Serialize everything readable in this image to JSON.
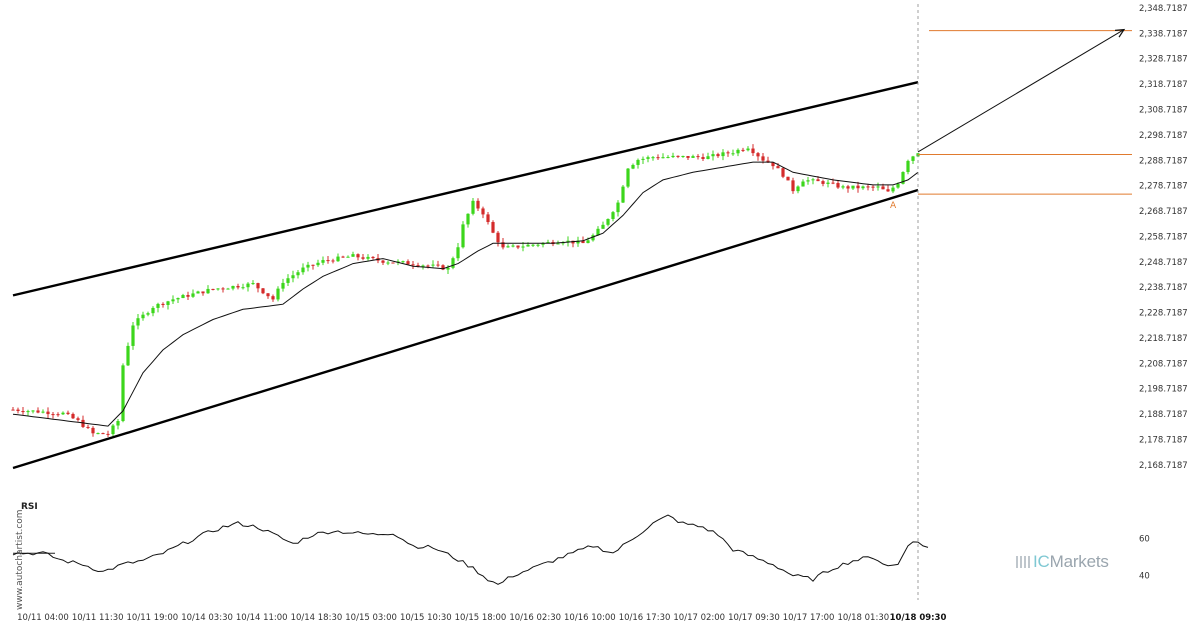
{
  "chart_data": [
    {
      "type": "candlestick",
      "title": "",
      "pattern": "Ascending channel (support touch, projected breakout up)",
      "y_axis": {
        "position": "right",
        "ticks": [
          "2,348.7187",
          "2,338.7187",
          "2,328.7187",
          "2,318.7187",
          "2,308.7187",
          "2,298.7187",
          "2,288.7187",
          "2,278.7187",
          "2,268.7187",
          "2,258.7187",
          "2,248.7187",
          "2,238.7187",
          "2,228.7187",
          "2,218.7187",
          "2,208.7187",
          "2,198.7187",
          "2,188.7187",
          "2,178.7187",
          "2,168.7187"
        ],
        "ylim": [
          2166.7,
          2349.5
        ]
      },
      "x_axis": {
        "ticks": [
          "10/11 04:00",
          "10/11 11:30",
          "10/11 19:00",
          "10/14 03:30",
          "10/14 11:00",
          "10/14 18:30",
          "10/15 03:00",
          "10/15 10:30",
          "10/15 18:00",
          "10/16 02:30",
          "10/16 10:00",
          "10/16 17:30",
          "10/17 02:00",
          "10/17 09:30",
          "10/17 17:00",
          "10/18 01:30",
          "10/18 09:30"
        ],
        "highlighted_tick": "10/18 09:30",
        "bar_count": 182
      },
      "price_anchors": [
        [
          0,
          2190.5
        ],
        [
          10,
          2189
        ],
        [
          13,
          2186
        ],
        [
          16,
          2181
        ],
        [
          19,
          2181
        ],
        [
          21,
          2186
        ],
        [
          22,
          2208
        ],
        [
          24,
          2224
        ],
        [
          28,
          2231
        ],
        [
          32,
          2234
        ],
        [
          36,
          2236
        ],
        [
          40,
          2238
        ],
        [
          44,
          2239
        ],
        [
          48,
          2240
        ],
        [
          50,
          2237
        ],
        [
          52,
          2234
        ],
        [
          54,
          2241
        ],
        [
          58,
          2246
        ],
        [
          62,
          2249
        ],
        [
          68,
          2251
        ],
        [
          74,
          2249
        ],
        [
          80,
          2248
        ],
        [
          84,
          2247
        ],
        [
          87,
          2246
        ],
        [
          89,
          2255
        ],
        [
          90,
          2263
        ],
        [
          92,
          2272
        ],
        [
          94,
          2268
        ],
        [
          96,
          2260
        ],
        [
          98,
          2254
        ],
        [
          102,
          2255
        ],
        [
          110,
          2257
        ],
        [
          114,
          2256
        ],
        [
          116,
          2259
        ],
        [
          118,
          2263
        ],
        [
          121,
          2272
        ],
        [
          123,
          2286
        ],
        [
          125,
          2289
        ],
        [
          128,
          2290
        ],
        [
          133,
          2290
        ],
        [
          139,
          2290
        ],
        [
          144,
          2292
        ],
        [
          147,
          2294
        ],
        [
          150,
          2289
        ],
        [
          152,
          2287
        ],
        [
          154,
          2283
        ],
        [
          156,
          2277
        ],
        [
          158,
          2281
        ],
        [
          162,
          2280
        ],
        [
          166,
          2278
        ],
        [
          170,
          2278
        ],
        [
          173,
          2278
        ],
        [
          175,
          2276
        ],
        [
          177,
          2280
        ],
        [
          179,
          2289
        ],
        [
          181,
          2292
        ]
      ],
      "moving_average_anchors": [
        [
          0,
          2188.7
        ],
        [
          17,
          2184.5
        ],
        [
          19,
          2184
        ],
        [
          22,
          2190
        ],
        [
          26,
          2205
        ],
        [
          30,
          2214
        ],
        [
          34,
          2220
        ],
        [
          40,
          2226
        ],
        [
          46,
          2230
        ],
        [
          54,
          2232
        ],
        [
          58,
          2238
        ],
        [
          62,
          2243
        ],
        [
          68,
          2248
        ],
        [
          74,
          2250
        ],
        [
          80,
          2247
        ],
        [
          86,
          2246
        ],
        [
          89,
          2248
        ],
        [
          93,
          2253
        ],
        [
          96,
          2256
        ],
        [
          100,
          2256
        ],
        [
          108,
          2256
        ],
        [
          114,
          2257
        ],
        [
          118,
          2260
        ],
        [
          122,
          2267
        ],
        [
          126,
          2276
        ],
        [
          130,
          2281
        ],
        [
          136,
          2284
        ],
        [
          142,
          2286
        ],
        [
          148,
          2288
        ],
        [
          152,
          2288
        ],
        [
          156,
          2284
        ],
        [
          164,
          2281
        ],
        [
          172,
          2279
        ],
        [
          176,
          2279
        ],
        [
          179,
          2281
        ],
        [
          181,
          2284
        ]
      ],
      "channel": {
        "upper_line": {
          "from_bar": 0,
          "from_price": 2235.5,
          "to_bar": 181,
          "to_price": 2319.5
        },
        "lower_line": {
          "from_bar": 0,
          "from_price": 2167.5,
          "to_bar": 181,
          "to_price": 2277.0
        }
      },
      "levels": [
        {
          "name": "target",
          "price": 2339.8,
          "color": "#e07a2e"
        },
        {
          "name": "breakout",
          "price": 2291.0,
          "color": "#e07a2e"
        },
        {
          "name": "support",
          "price": 2275.4,
          "color": "#e07a2e"
        }
      ],
      "projection_arrow": {
        "from_bar": 181,
        "from_price": 2292.0,
        "to_price": 2340.2
      },
      "point_label": {
        "text": "A",
        "bar": 176,
        "price": 2273.5,
        "color": "#e07a2e"
      },
      "colors": {
        "up": "#3cd61c",
        "down": "#d42b2b",
        "line": "#000000",
        "level": "#e07a2e"
      }
    },
    {
      "type": "line",
      "title": "RSI",
      "y_ticks": [
        "60",
        "40"
      ],
      "ylim": [
        29,
        72
      ],
      "rsi_anchors": [
        [
          0,
          52
        ],
        [
          6,
          52
        ],
        [
          10,
          48
        ],
        [
          14,
          46
        ],
        [
          18,
          42
        ],
        [
          22,
          46
        ],
        [
          26,
          48
        ],
        [
          30,
          52
        ],
        [
          34,
          57
        ],
        [
          38,
          62
        ],
        [
          42,
          66
        ],
        [
          45,
          68
        ],
        [
          49,
          66
        ],
        [
          53,
          61
        ],
        [
          56,
          57
        ],
        [
          60,
          62
        ],
        [
          64,
          64
        ],
        [
          68,
          63
        ],
        [
          72,
          62
        ],
        [
          76,
          63
        ],
        [
          80,
          56
        ],
        [
          84,
          55
        ],
        [
          88,
          50
        ],
        [
          92,
          44
        ],
        [
          95,
          38
        ],
        [
          97,
          35
        ],
        [
          100,
          40
        ],
        [
          104,
          44
        ],
        [
          108,
          48
        ],
        [
          112,
          52
        ],
        [
          116,
          56
        ],
        [
          120,
          52
        ],
        [
          124,
          60
        ],
        [
          128,
          68
        ],
        [
          131,
          72
        ],
        [
          134,
          68
        ],
        [
          138,
          66
        ],
        [
          141,
          62
        ],
        [
          144,
          54
        ],
        [
          148,
          50
        ],
        [
          152,
          46
        ],
        [
          156,
          40
        ],
        [
          160,
          38
        ],
        [
          164,
          44
        ],
        [
          168,
          48
        ],
        [
          172,
          50
        ],
        [
          175,
          45
        ],
        [
          177,
          46
        ],
        [
          179,
          57
        ],
        [
          181,
          58
        ],
        [
          183,
          55
        ]
      ],
      "reference_line": 52
    }
  ],
  "watermark": "www.autochartist.com",
  "brand": {
    "prefix": "IC",
    "suffix": "Markets"
  }
}
